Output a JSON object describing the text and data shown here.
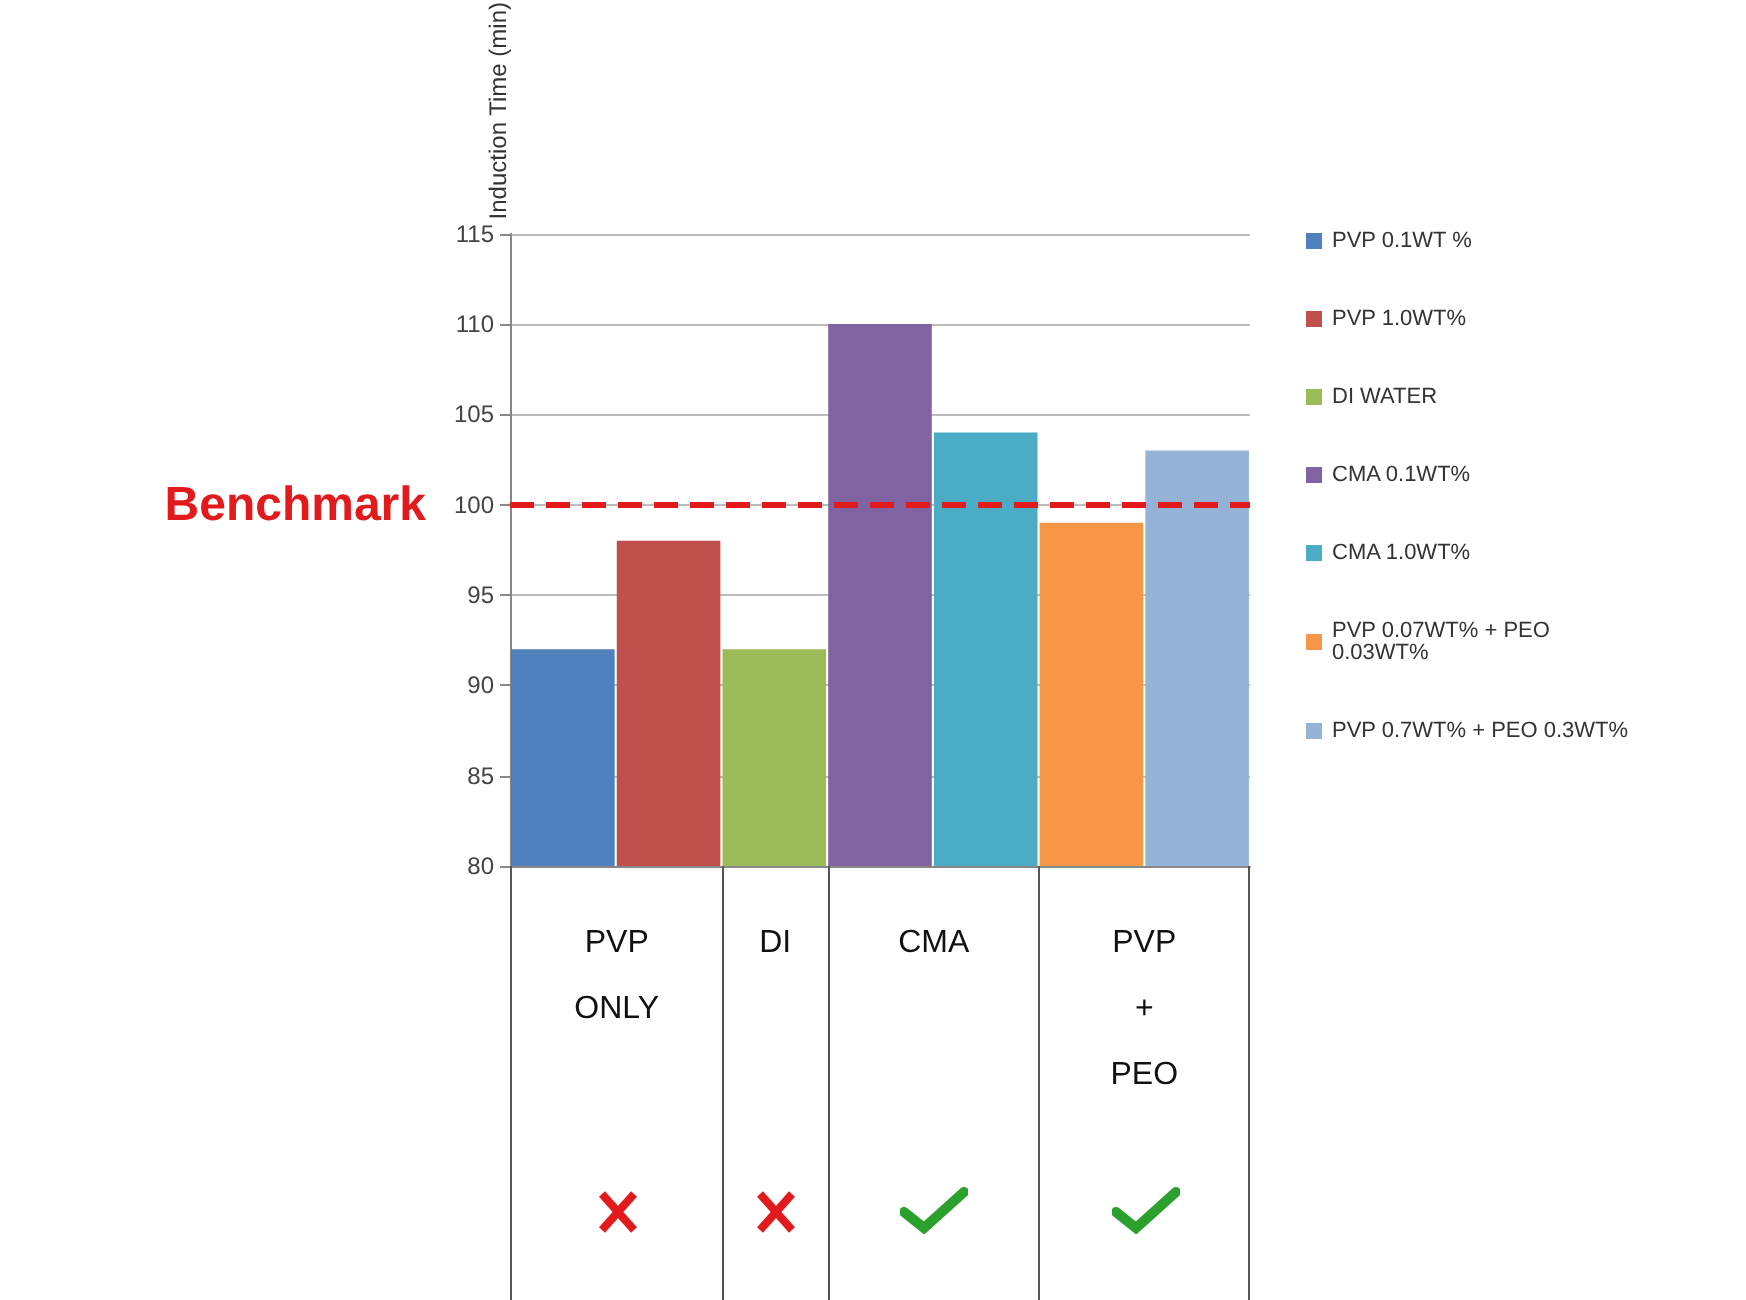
{
  "chart_data": {
    "type": "bar",
    "ylabel": "Induction Time (min)",
    "categories": [
      "PVP ONLY",
      "DI",
      "CMA",
      "PVP + PEO"
    ],
    "series": [
      {
        "name": "PVP 0.1WT %",
        "color": "#4f81bd",
        "values": [
          92,
          null,
          null,
          null
        ]
      },
      {
        "name": "PVP 1.0WT%",
        "color": "#c0504d",
        "values": [
          98,
          null,
          null,
          null
        ]
      },
      {
        "name": "DI WATER",
        "color": "#9bbb59",
        "values": [
          null,
          92,
          null,
          null
        ]
      },
      {
        "name": "CMA 0.1WT%",
        "color": "#8064a2",
        "values": [
          null,
          null,
          110,
          null
        ]
      },
      {
        "name": "CMA 1.0WT%",
        "color": "#4bacc6",
        "values": [
          null,
          null,
          104,
          null
        ]
      },
      {
        "name": "PVP 0.07WT% + PEO 0.03WT%",
        "color": "#f79646",
        "values": [
          null,
          null,
          null,
          99
        ]
      },
      {
        "name": "PVP 0.7WT% + PEO 0.3WT%",
        "color": "#95b3d7",
        "values": [
          null,
          null,
          null,
          103
        ]
      }
    ],
    "ylim": [
      80,
      115
    ],
    "yticks": [
      80,
      85,
      90,
      95,
      100,
      105,
      110,
      115
    ],
    "grid": "y",
    "legend": "right",
    "ref_lines": [
      {
        "axis": "y",
        "value": 100,
        "label": "Benchmark",
        "color": "#e31a1c",
        "line_style": "dashed"
      }
    ]
  }
}
